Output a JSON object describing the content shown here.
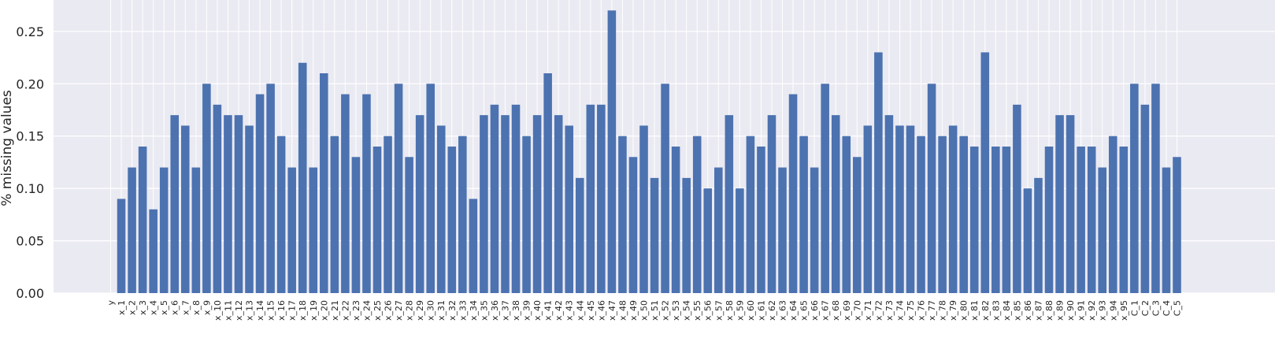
{
  "chart_data": {
    "type": "bar",
    "title": "",
    "xlabel": "",
    "ylabel": "% missing values",
    "ylim": [
      0,
      0.28
    ],
    "yticks": [
      "0.00",
      "0.05",
      "0.10",
      "0.15",
      "0.20",
      "0.25"
    ],
    "grid": true,
    "style": "seaborn-darkgrid",
    "colors": {
      "bar": "#4c72b0",
      "background": "#eaeaf2",
      "grid": "#ffffff"
    },
    "categories": [
      "y",
      "x_1",
      "x_2",
      "x_3",
      "x_4",
      "x_5",
      "x_6",
      "x_7",
      "x_8",
      "x_9",
      "x_10",
      "x_11",
      "x_12",
      "x_13",
      "x_14",
      "x_15",
      "x_16",
      "x_17",
      "x_18",
      "x_19",
      "x_20",
      "x_21",
      "x_22",
      "x_23",
      "x_24",
      "x_25",
      "x_26",
      "x_27",
      "x_28",
      "x_29",
      "x_30",
      "x_31",
      "x_32",
      "x_33",
      "x_34",
      "x_35",
      "x_36",
      "x_37",
      "x_38",
      "x_39",
      "x_40",
      "x_41",
      "x_42",
      "x_43",
      "x_44",
      "x_45",
      "x_46",
      "x_47",
      "x_48",
      "x_49",
      "x_50",
      "x_51",
      "x_52",
      "x_53",
      "x_54",
      "x_55",
      "x_56",
      "x_57",
      "x_58",
      "x_59",
      "x_60",
      "x_61",
      "x_62",
      "x_63",
      "x_64",
      "x_65",
      "x_66",
      "x_67",
      "x_68",
      "x_69",
      "x_70",
      "x_71",
      "x_72",
      "x_73",
      "x_74",
      "x_75",
      "x_76",
      "x_77",
      "x_78",
      "x_79",
      "x_80",
      "x_81",
      "x_82",
      "x_83",
      "x_84",
      "x_85",
      "x_86",
      "x_87",
      "x_88",
      "x_89",
      "x_90",
      "x_91",
      "x_92",
      "x_93",
      "x_94",
      "x_95",
      "C_1",
      "C_2",
      "C_3",
      "C_4",
      "C_5"
    ],
    "values": [
      0.0,
      0.09,
      0.12,
      0.14,
      0.08,
      0.12,
      0.17,
      0.16,
      0.12,
      0.2,
      0.18,
      0.17,
      0.17,
      0.16,
      0.19,
      0.2,
      0.15,
      0.12,
      0.22,
      0.12,
      0.21,
      0.15,
      0.19,
      0.13,
      0.19,
      0.14,
      0.15,
      0.2,
      0.13,
      0.17,
      0.2,
      0.16,
      0.14,
      0.15,
      0.09,
      0.17,
      0.18,
      0.17,
      0.18,
      0.15,
      0.17,
      0.21,
      0.17,
      0.16,
      0.11,
      0.18,
      0.18,
      0.27,
      0.15,
      0.13,
      0.16,
      0.11,
      0.2,
      0.14,
      0.11,
      0.15,
      0.1,
      0.12,
      0.17,
      0.1,
      0.15,
      0.14,
      0.17,
      0.12,
      0.19,
      0.15,
      0.12,
      0.2,
      0.17,
      0.15,
      0.13,
      0.16,
      0.23,
      0.17,
      0.16,
      0.16,
      0.15,
      0.2,
      0.15,
      0.16,
      0.15,
      0.14,
      0.23,
      0.14,
      0.14,
      0.18,
      0.1,
      0.11,
      0.14,
      0.17,
      0.17,
      0.14,
      0.14,
      0.12,
      0.15,
      0.14,
      0.2,
      0.18,
      0.2,
      0.12,
      0.13
    ]
  }
}
